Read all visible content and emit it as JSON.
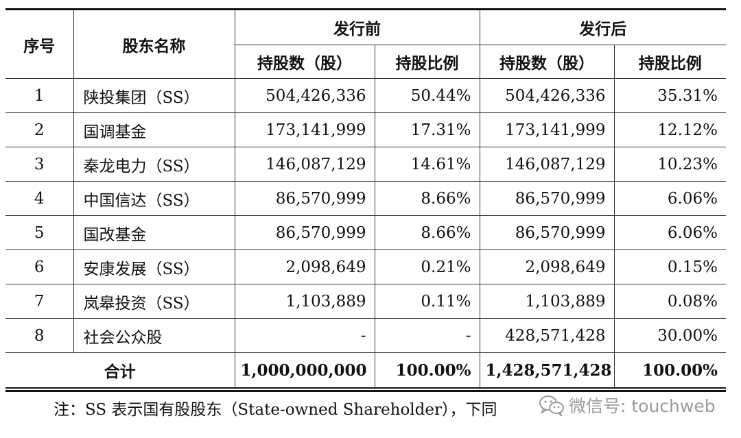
{
  "table": {
    "headers": {
      "seq": "序号",
      "name": "股东名称",
      "before": "发行前",
      "after": "发行后",
      "shares_before": "持股数（股）",
      "ratio_before": "持股比例",
      "shares_after": "持股数（股）",
      "ratio_after": "持股比例"
    },
    "rows": [
      {
        "seq": "1",
        "name": "陕投集团（SS）",
        "shares_before": "504,426,336",
        "ratio_before": "50.44%",
        "shares_after": "504,426,336",
        "ratio_after": "35.31%"
      },
      {
        "seq": "2",
        "name": "国调基金",
        "shares_before": "173,141,999",
        "ratio_before": "17.31%",
        "shares_after": "173,141,999",
        "ratio_after": "12.12%"
      },
      {
        "seq": "3",
        "name": "秦龙电力（SS）",
        "shares_before": "146,087,129",
        "ratio_before": "14.61%",
        "shares_after": "146,087,129",
        "ratio_after": "10.23%"
      },
      {
        "seq": "4",
        "name": "中国信达（SS）",
        "shares_before": "86,570,999",
        "ratio_before": "8.66%",
        "shares_after": "86,570,999",
        "ratio_after": "6.06%"
      },
      {
        "seq": "5",
        "name": "国改基金",
        "shares_before": "86,570,999",
        "ratio_before": "8.66%",
        "shares_after": "86,570,999",
        "ratio_after": "6.06%"
      },
      {
        "seq": "6",
        "name": "安康发展（SS）",
        "shares_before": "2,098,649",
        "ratio_before": "0.21%",
        "shares_after": "2,098,649",
        "ratio_after": "0.15%"
      },
      {
        "seq": "7",
        "name": "岚皋投资（SS）",
        "shares_before": "1,103,889",
        "ratio_before": "0.11%",
        "shares_after": "1,103,889",
        "ratio_after": "0.08%"
      },
      {
        "seq": "8",
        "name": "社会公众股",
        "shares_before": "-",
        "ratio_before": "-",
        "shares_after": "428,571,428",
        "ratio_after": "30.00%"
      }
    ],
    "total": {
      "label": "合计",
      "shares_before": "1,000,000,000",
      "ratio_before": "100.00%",
      "shares_after": "1,428,571,428",
      "ratio_after": "100.00%"
    }
  },
  "note": "注：SS 表示国有股股东（State-owned Shareholder），下同",
  "watermark": {
    "text": "微信号: touchweb",
    "icon": "wechat-icon",
    "color": "#9a9a9a"
  }
}
